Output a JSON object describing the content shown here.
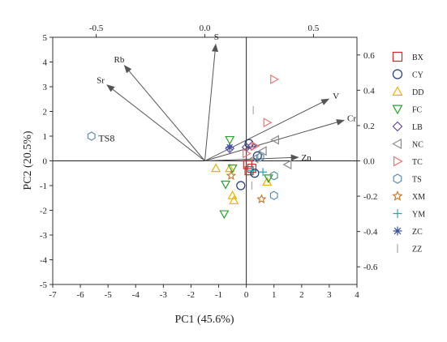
{
  "chart_data": {
    "type": "scatter",
    "title": "",
    "xlabel": "PC1 (45.6%)",
    "ylabel": "PC2 (20.5%)",
    "xlim": [
      -7,
      4
    ],
    "ylim": [
      -5,
      5
    ],
    "x_ticks": [
      "-7",
      "-6",
      "-5",
      "-4",
      "-3",
      "-2",
      "-1",
      "0",
      "1",
      "2",
      "3",
      "4"
    ],
    "y_ticks": [
      "-5",
      "-4",
      "-3",
      "-2",
      "-1",
      "0",
      "1",
      "2",
      "3",
      "4",
      "5"
    ],
    "top_axis": {
      "lim": [
        -0.7,
        0.7
      ],
      "ticks": [
        "-0.5",
        "0.0",
        "0.5"
      ]
    },
    "right_axis": {
      "lim": [
        -0.7,
        0.7
      ],
      "ticks": [
        "0.6",
        "0.4",
        "0.2",
        "0.0",
        "-0.2",
        "-0.4",
        "-0.6"
      ]
    },
    "grid": false,
    "legend_position": "right",
    "loadings_origin": [
      -1.5,
      0
    ],
    "loadings": [
      {
        "label": "S",
        "x": 0.05,
        "y": 0.66
      },
      {
        "label": "Rb",
        "x": -0.37,
        "y": 0.54
      },
      {
        "label": "Sr",
        "x": -0.45,
        "y": 0.43
      },
      {
        "label": "V",
        "x": 0.57,
        "y": 0.35
      },
      {
        "label": "Cr",
        "x": 0.64,
        "y": 0.23
      },
      {
        "label": "Zn",
        "x": 0.43,
        "y": 0.02
      }
    ],
    "annotation": {
      "label": "TS8",
      "x": -5.7,
      "y": 0.95
    },
    "series": [
      {
        "name": "BX",
        "marker": "square",
        "color": "#d62728",
        "points": [
          [
            0.1,
            -0.4
          ],
          [
            0.05,
            -0.15
          ],
          [
            0.2,
            -0.3
          ]
        ]
      },
      {
        "name": "CY",
        "marker": "circle",
        "color": "#1f3b73",
        "points": [
          [
            -0.2,
            -1.0
          ],
          [
            0.3,
            -0.5
          ],
          [
            0.1,
            0.7
          ],
          [
            0.4,
            0.2
          ]
        ]
      },
      {
        "name": "DD",
        "marker": "triangle-up",
        "color": "#e8b400",
        "points": [
          [
            -1.1,
            -0.3
          ],
          [
            -0.6,
            -0.3
          ],
          [
            -0.5,
            -1.4
          ],
          [
            -0.45,
            -1.6
          ],
          [
            0.75,
            -0.85
          ]
        ]
      },
      {
        "name": "FC",
        "marker": "triangle-down",
        "color": "#2ca02c",
        "points": [
          [
            -0.6,
            0.85
          ],
          [
            -0.75,
            -0.95
          ],
          [
            -0.8,
            -2.15
          ],
          [
            -0.5,
            -0.3
          ],
          [
            0.8,
            -0.7
          ]
        ]
      },
      {
        "name": "LB",
        "marker": "diamond",
        "color": "#6a4c9c",
        "points": [
          [
            -0.6,
            0.5
          ],
          [
            0.0,
            0.55
          ],
          [
            0.2,
            0.6
          ]
        ]
      },
      {
        "name": "NC",
        "marker": "triangle-left",
        "color": "#8c8c8c",
        "points": [
          [
            1.05,
            0.85
          ],
          [
            1.5,
            -0.15
          ],
          [
            0.6,
            0.4
          ],
          [
            0.3,
            0.1
          ]
        ]
      },
      {
        "name": "TC",
        "marker": "triangle-right",
        "color": "#f07070",
        "points": [
          [
            1.0,
            3.3
          ],
          [
            0.75,
            1.55
          ],
          [
            0.3,
            0.6
          ],
          [
            0.0,
            0.3
          ]
        ]
      },
      {
        "name": "TS",
        "marker": "hexagon",
        "color": "#5a8fb0",
        "points": [
          [
            1.0,
            -1.4
          ],
          [
            1.0,
            -0.6
          ],
          [
            0.5,
            0.15
          ],
          [
            -5.6,
            1.0
          ]
        ]
      },
      {
        "name": "XM",
        "marker": "star",
        "color": "#c77b30",
        "points": [
          [
            -0.55,
            -0.6
          ],
          [
            0.55,
            -1.55
          ]
        ]
      },
      {
        "name": "YM",
        "marker": "plus",
        "color": "#2aa6a6",
        "points": [
          [
            0.6,
            -0.45
          ],
          [
            0.2,
            -0.4
          ]
        ]
      },
      {
        "name": "ZC",
        "marker": "asterisk",
        "color": "#3a4fa0",
        "points": [
          [
            -0.6,
            0.55
          ]
        ]
      },
      {
        "name": "ZZ",
        "marker": "vline",
        "color": "#aaaaaa",
        "points": [
          [
            0.25,
            2.05
          ],
          [
            0.2,
            -1.0
          ]
        ]
      }
    ]
  }
}
